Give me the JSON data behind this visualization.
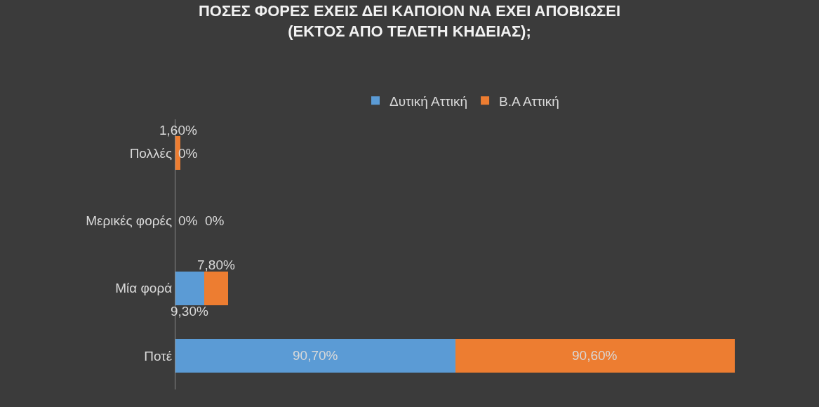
{
  "chart_data": {
    "type": "bar",
    "orientation": "horizontal",
    "stacked": true,
    "title": "ΠΟΣΕΣ ΦΟΡΕΣ ΕΧΕΙΣ ΔΕΙ ΚΑΠΟΙΟΝ ΝΑ ΕΧΕΙ ΑΠΟΒΙΩΣΕΙ\n(ΕΚΤΟΣ ΑΠΟ ΤΕΛΕΤΗ ΚΗΔΕΙΑΣ);",
    "categories": [
      "Πολλές",
      "Μερικές φορές",
      "Μία φορά",
      "Ποτέ"
    ],
    "series": [
      {
        "name": "Δυτική Αττική",
        "color": "#5b9bd5",
        "values": [
          0,
          0,
          9.3,
          90.7
        ],
        "value_labels": [
          "0%",
          "0%",
          "9,30%",
          "90,70%"
        ]
      },
      {
        "name": "Β.Α Αττική",
        "color": "#ed7d31",
        "values": [
          1.6,
          0,
          7.8,
          90.6
        ],
        "value_labels": [
          "1,60%",
          "0%",
          "7,80%",
          "90,60%"
        ]
      }
    ],
    "legend": "top",
    "grid": false,
    "tick_labels": "y"
  }
}
